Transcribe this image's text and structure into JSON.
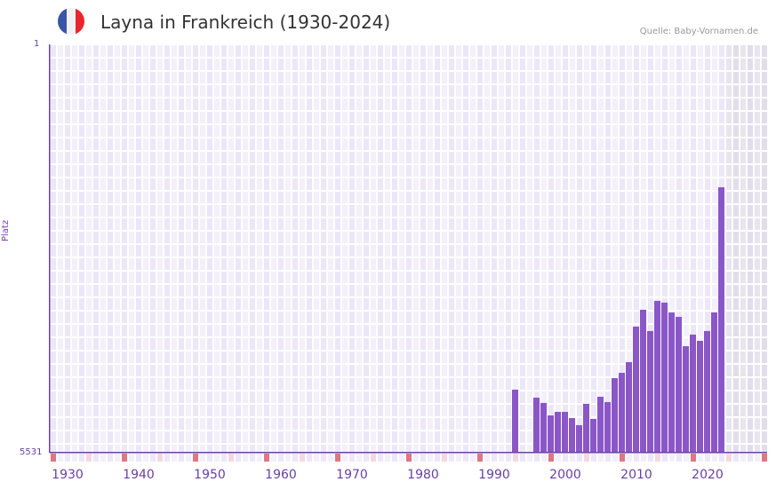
{
  "header": {
    "title": "Layna in Frankreich (1930-2024)",
    "source": "Quelle: Baby-Vornamen.de",
    "flag_colors": [
      "#3a55a4",
      "#f2f2f2",
      "#e8262c"
    ]
  },
  "axes": {
    "y_top_label": "1",
    "y_bottom_label": "5531",
    "y_title": "Platz",
    "x_labels": [
      "1930",
      "1940",
      "1950",
      "1960",
      "1970",
      "1980",
      "1990",
      "2000",
      "2010",
      "2020"
    ]
  },
  "colors": {
    "bar": "#8a56c8",
    "axis": "#6a3fa0",
    "grid_light": "#f3f0fb",
    "grid_dark": "#ece7f8",
    "future_shade": "#e4e0ee",
    "tick_decade": "#e07680",
    "tick_half": "#f5d8df"
  },
  "chart_data": {
    "type": "bar",
    "title": "Layna in Frankreich (1930-2024)",
    "xlabel": "",
    "ylabel": "Platz",
    "y_inverted": true,
    "ylim": [
      5531,
      1
    ],
    "x_range": [
      1928,
      2028
    ],
    "grid": true,
    "legend": null,
    "x": [
      1993,
      1996,
      1997,
      1998,
      1999,
      2000,
      2001,
      2002,
      2003,
      2004,
      2005,
      2006,
      2007,
      2008,
      2009,
      2010,
      2011,
      2012,
      2013,
      2014,
      2015,
      2016,
      2017,
      2018,
      2019,
      2020,
      2021,
      2022
    ],
    "values": [
      4677,
      4785,
      4857,
      5026,
      4978,
      4978,
      5062,
      5158,
      4869,
      5074,
      4773,
      4845,
      4521,
      4449,
      4304,
      3823,
      3595,
      3883,
      3474,
      3498,
      3631,
      3691,
      4088,
      3931,
      4016,
      3883,
      3631,
      1936
    ]
  }
}
